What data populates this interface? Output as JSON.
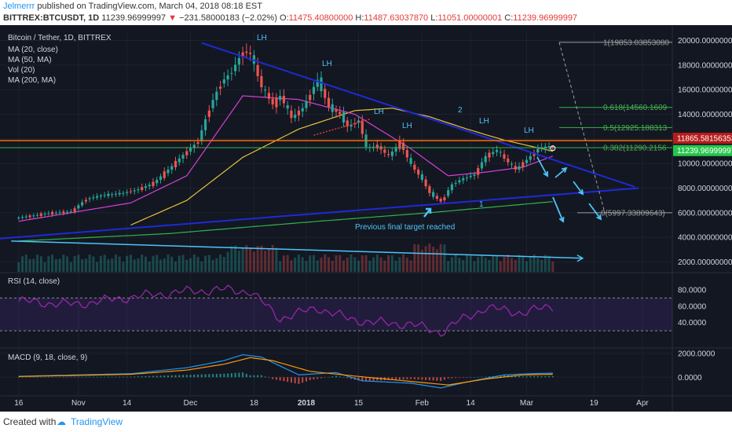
{
  "header": {
    "author": "Jelmerrr",
    "published_text": "published on TradingView.com, March 04, 2018 08:18 EST",
    "symbol": "BITTREX:BTCUSDT, 1D",
    "last": "11239.96999997",
    "change": "−231.58000183 (−2.02%)",
    "o_label": "O:",
    "o_value": "11475.40800000",
    "h_label": "H:",
    "h_value": "11487.63037870",
    "l_label": "L:",
    "l_value": "11051.00000001",
    "c_label": "C:",
    "c_value": "11239.96999997"
  },
  "legend": {
    "title": "Bitcoin / Tether, 1D, BITTREX",
    "items": [
      "MA (20, close)",
      "MA (50, MA)",
      "Vol (20)",
      "MA (200, MA)"
    ]
  },
  "rsi_label": "RSI (14, close)",
  "macd_label": "MACD (9, 18, close, 9)",
  "colors": {
    "background": "#131722",
    "bull": "#26a69a",
    "bear": "#ef5350",
    "trendline": "#1f2ad6",
    "cyan": "#4fc3f7",
    "ma20": "#d63fd6",
    "ma50": "#e6c13a",
    "ma200": "#2fb44a",
    "fib": "#9e9e9e",
    "resistance": "#ff6a00",
    "last_price_bg": "#26c64b"
  },
  "annotations": {
    "lh": [
      "LH",
      "LH",
      "LH",
      "LH",
      "LH",
      "LH"
    ],
    "wave_1": "1",
    "wave_2": "2",
    "target_note": "Previous final target reached"
  },
  "fib": [
    {
      "label": "1(19853.03853080",
      "price": 19853.04
    },
    {
      "label": "0.618(14560.1609",
      "price": 14560.16
    },
    {
      "label": "0.5(12925.188313",
      "price": 12925.19
    },
    {
      "label": "0.382(11290.2156",
      "price": 11290.22
    },
    {
      "label": "0(5997.33809643)",
      "price": 5997.34
    }
  ],
  "price_tags": [
    {
      "text": "11865.58156353",
      "price": 11865.58,
      "role": "resistance"
    },
    {
      "text": "11239.96999997",
      "price": 11239.97,
      "role": "last"
    }
  ],
  "footer": {
    "created_with": "Created with",
    "brand": "TradingView"
  },
  "chart_data": [
    {
      "type": "candlestick",
      "title": "Bitcoin / Tether, 1D, BITTREX",
      "ylim": [
        1200,
        20800
      ],
      "y_ticks": [
        "20000.00000000",
        "18000.00000000",
        "16000.00000000",
        "14000.00000000",
        "12000.00000000",
        "10000.00000000",
        "8000.00000000",
        "6000.00000000",
        "4000.00000000",
        "2000.00000000"
      ],
      "y_tick_values": [
        20000,
        18000,
        16000,
        14000,
        12000,
        10000,
        8000,
        6000,
        4000,
        2000
      ],
      "x_ticks": [
        "16",
        "Nov",
        "14",
        "Dec",
        "18",
        "2018",
        "15",
        "Feb",
        "14",
        "Mar",
        "19",
        "Apr"
      ],
      "x_tick_days": [
        0,
        16,
        29,
        46,
        63,
        77,
        91,
        108,
        121,
        136,
        154,
        167
      ],
      "x_range_days": [
        -5,
        175
      ],
      "close_keypoints": [
        [
          0,
          5600
        ],
        [
          8,
          5950
        ],
        [
          14,
          6100
        ],
        [
          18,
          7100
        ],
        [
          22,
          7400
        ],
        [
          28,
          7600
        ],
        [
          32,
          7900
        ],
        [
          36,
          8400
        ],
        [
          40,
          9500
        ],
        [
          44,
          10700
        ],
        [
          48,
          11800
        ],
        [
          51,
          14500
        ],
        [
          54,
          16500
        ],
        [
          57,
          17500
        ],
        [
          60,
          19100
        ],
        [
          62,
          18900
        ],
        [
          65,
          16200
        ],
        [
          68,
          14800
        ],
        [
          70,
          15500
        ],
        [
          73,
          13700
        ],
        [
          76,
          14500
        ],
        [
          80,
          16800
        ],
        [
          83,
          14600
        ],
        [
          86,
          14000
        ],
        [
          88,
          13000
        ],
        [
          91,
          13500
        ],
        [
          93,
          11300
        ],
        [
          96,
          11400
        ],
        [
          99,
          10600
        ],
        [
          102,
          11700
        ],
        [
          105,
          9900
        ],
        [
          108,
          8700
        ],
        [
          110,
          7600
        ],
        [
          113,
          6900
        ],
        [
          116,
          8300
        ],
        [
          119,
          8800
        ],
        [
          122,
          9100
        ],
        [
          125,
          10600
        ],
        [
          128,
          11100
        ],
        [
          130,
          10400
        ],
        [
          133,
          9500
        ],
        [
          136,
          10300
        ],
        [
          139,
          11200
        ],
        [
          142,
          11400
        ],
        [
          143,
          11240
        ]
      ],
      "ma_20_keypoints": [
        [
          0,
          5300
        ],
        [
          30,
          6800
        ],
        [
          45,
          9000
        ],
        [
          60,
          15500
        ],
        [
          75,
          15200
        ],
        [
          90,
          14000
        ],
        [
          105,
          11200
        ],
        [
          115,
          9000
        ],
        [
          125,
          9300
        ],
        [
          135,
          9700
        ],
        [
          143,
          10600
        ]
      ],
      "ma_50_keypoints": [
        [
          30,
          5000
        ],
        [
          45,
          7000
        ],
        [
          60,
          10500
        ],
        [
          75,
          12800
        ],
        [
          90,
          14300
        ],
        [
          100,
          14500
        ],
        [
          110,
          13800
        ],
        [
          120,
          12800
        ],
        [
          130,
          11900
        ],
        [
          143,
          11000
        ]
      ],
      "ma_200_keypoints": [
        [
          0,
          3700
        ],
        [
          40,
          4300
        ],
        [
          80,
          5300
        ],
        [
          110,
          6000
        ],
        [
          143,
          6900
        ]
      ],
      "trendlines": {
        "descending_resistance": [
          [
            49,
            19800
          ],
          [
            165,
            8100
          ]
        ],
        "ascending_support": [
          [
            -5,
            3900
          ],
          [
            166,
            8000
          ]
        ],
        "lower_resistance": [
          [
            79,
            12300
          ],
          [
            94,
            13600
          ]
        ],
        "volume_trend": [
          [
            -2,
            3700
          ],
          [
            151,
            2300
          ]
        ]
      },
      "ohlc_last": {
        "open": 11475.408,
        "high": 11487.6304,
        "low": 11051.0,
        "close": 11239.97
      }
    },
    {
      "type": "line",
      "title": "RSI (14, close)",
      "ylim": [
        10,
        100
      ],
      "y_ticks": [
        "80.0000",
        "60.0000",
        "40.0000"
      ],
      "y_tick_values": [
        80,
        60,
        40
      ],
      "bands": [
        70,
        30
      ],
      "keypoints": [
        [
          0,
          66
        ],
        [
          15,
          62
        ],
        [
          30,
          71
        ],
        [
          45,
          78
        ],
        [
          55,
          80
        ],
        [
          62,
          78
        ],
        [
          70,
          45
        ],
        [
          80,
          58
        ],
        [
          88,
          45
        ],
        [
          95,
          40
        ],
        [
          105,
          38
        ],
        [
          113,
          28
        ],
        [
          118,
          42
        ],
        [
          125,
          58
        ],
        [
          135,
          52
        ],
        [
          143,
          60
        ]
      ]
    },
    {
      "type": "bar",
      "title": "MACD (9, 18, close, 9)",
      "ylim": [
        -1500,
        2400
      ],
      "y_ticks": [
        "2000.0000",
        "0.0000"
      ],
      "y_tick_values": [
        2000,
        0
      ],
      "macd_keypoints": [
        [
          0,
          80
        ],
        [
          30,
          300
        ],
        [
          45,
          800
        ],
        [
          55,
          1400
        ],
        [
          60,
          1900
        ],
        [
          65,
          1700
        ],
        [
          75,
          200
        ],
        [
          85,
          400
        ],
        [
          92,
          -300
        ],
        [
          105,
          -500
        ],
        [
          113,
          -900
        ],
        [
          120,
          -400
        ],
        [
          130,
          200
        ],
        [
          137,
          300
        ],
        [
          143,
          350
        ]
      ],
      "signal_keypoints": [
        [
          0,
          60
        ],
        [
          30,
          250
        ],
        [
          45,
          600
        ],
        [
          55,
          1100
        ],
        [
          62,
          1650
        ],
        [
          68,
          1400
        ],
        [
          78,
          500
        ],
        [
          90,
          100
        ],
        [
          105,
          -350
        ],
        [
          115,
          -650
        ],
        [
          125,
          -150
        ],
        [
          135,
          200
        ],
        [
          143,
          250
        ]
      ]
    }
  ]
}
